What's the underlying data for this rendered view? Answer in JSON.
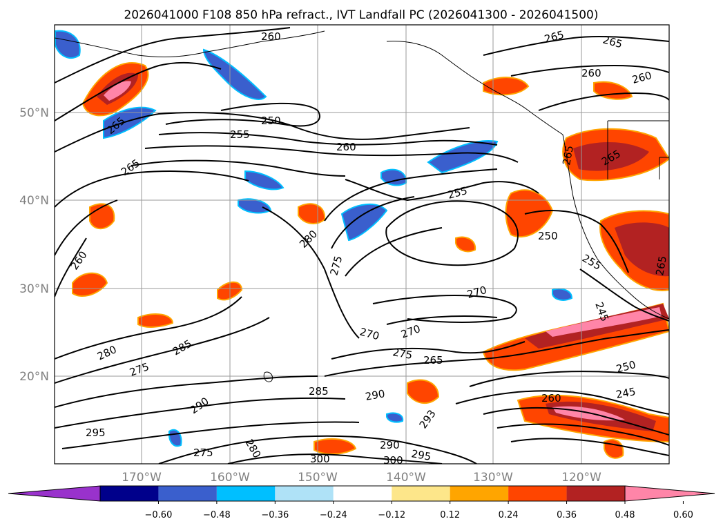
{
  "title": "2026041000 F108 850 hPa refract., IVT Landfall PC (2026041300 - 2026041500)",
  "lat_labels": [
    "50°N",
    "40°N",
    "30°N",
    "20°N"
  ],
  "lon_labels": [
    "170°W",
    "160°W",
    "150°W",
    "140°W",
    "130°W",
    "120°W"
  ],
  "colorbar": {
    "ticks": [
      "−0.60",
      "−0.48",
      "−0.36",
      "−0.24",
      "−0.12",
      "0.12",
      "0.24",
      "0.36",
      "0.48",
      "0.60"
    ],
    "colors": [
      "#9932cc",
      "#00008b",
      "#3a5fcd",
      "#00bfff",
      "#afe2f7",
      "#ffffff",
      "#fde68a",
      "#ffa500",
      "#ff4500",
      "#b22222",
      "#ff85a8"
    ],
    "extend": "both"
  },
  "contour_labels": [
    "260",
    "265",
    "265",
    "260",
    "260",
    "250",
    "255",
    "260",
    "265",
    "265",
    "255",
    "265",
    "280",
    "275",
    "260",
    "250",
    "255",
    "270",
    "270",
    "270",
    "275",
    "265",
    "285",
    "280",
    "275",
    "285",
    "290",
    "290",
    "290",
    "293",
    "295",
    "300",
    "280",
    "275",
    "300",
    "295",
    "260",
    "250",
    "245",
    "245",
    "265",
    "265"
  ]
}
